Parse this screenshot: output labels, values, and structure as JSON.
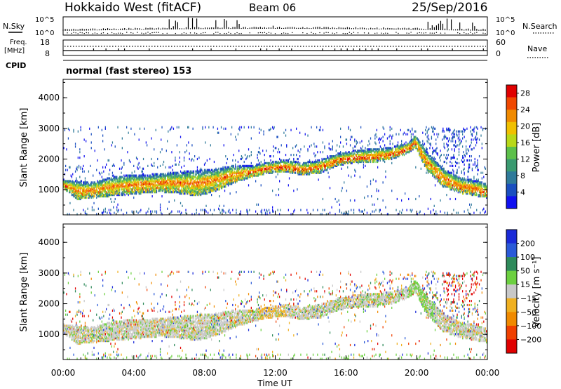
{
  "header": {
    "title": "Hokkaido West (fitACF)",
    "beam": "Beam 06",
    "date": "25/Sep/2016"
  },
  "panels": {
    "nsky": {
      "label": "N.Sky",
      "right_label": "N.Search",
      "top_tick": "10^5",
      "bottom_tick": "10^0"
    },
    "freq": {
      "label_line1": "Freq.",
      "label_line2": "[MHz]",
      "right_label": "Nave",
      "left_ticks": [
        "18",
        "8"
      ],
      "right_ticks": [
        "60",
        "0"
      ]
    },
    "cpid": {
      "label": "CPID",
      "value": "normal (fast stereo) 153"
    }
  },
  "colors": {
    "power_scale": [
      "#1010f0",
      "#1a4fc0",
      "#2f7a9a",
      "#3a9a70",
      "#5cc04a",
      "#b8d818",
      "#f0c000",
      "#f08a00",
      "#f04800",
      "#e00000"
    ],
    "velocity_scale": [
      "#1a2ad8",
      "#2a5ad8",
      "#2e8a5a",
      "#6cd040",
      "#c8c8c8",
      "#f0b020",
      "#f08a00",
      "#f04000",
      "#e00000"
    ]
  },
  "chart_data": [
    {
      "type": "heatmap",
      "name": "power",
      "ylabel": "Slant Range [km]",
      "xlabel": "",
      "yticks": [
        "1000",
        "2000",
        "3000",
        "4000"
      ],
      "ylim": [
        180,
        4600
      ],
      "colorbar_label": "Power [dB]",
      "colorbar_ticks": [
        "4",
        "8",
        "12",
        "16",
        "20",
        "24",
        "28"
      ],
      "colorbar_range": [
        0,
        30
      ]
    },
    {
      "type": "heatmap",
      "name": "velocity",
      "ylabel": "Slant Range [km]",
      "xlabel": "Time UT",
      "xticks": [
        "00:00",
        "04:00",
        "08:00",
        "12:00",
        "16:00",
        "20:00",
        "00:00"
      ],
      "yticks": [
        "1000",
        "2000",
        "3000",
        "4000"
      ],
      "ylim": [
        180,
        4600
      ],
      "colorbar_label": "Velocity [m s⁻¹]",
      "colorbar_ticks": [
        "200",
        "100",
        "50",
        "15",
        "−15",
        "−50",
        "−100",
        "−200"
      ]
    }
  ]
}
